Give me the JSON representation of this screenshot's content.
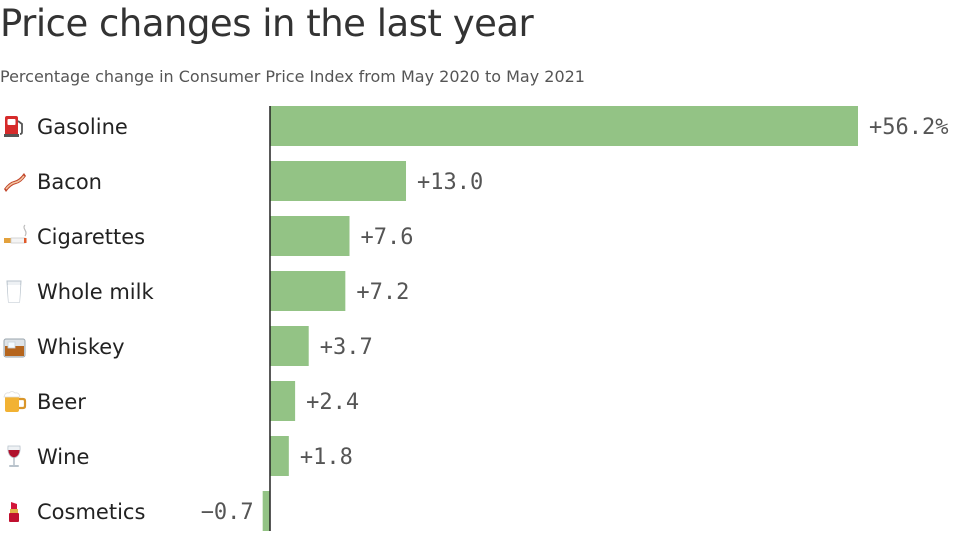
{
  "header": {
    "title": "Price changes in the last year",
    "subtitle": "Percentage change in Consumer Price Index from May 2020 to May 2021"
  },
  "chart_data": {
    "type": "bar",
    "orientation": "horizontal",
    "title": "Price changes in the last year",
    "subtitle": "Percentage change in Consumer Price Index from May 2020 to May 2021",
    "xlabel": "",
    "ylabel": "",
    "categories": [
      "Gasoline",
      "Bacon",
      "Cigarettes",
      "Whole milk",
      "Whiskey",
      "Beer",
      "Wine",
      "Cosmetics"
    ],
    "category_icons": [
      "fuel-pump-icon",
      "bacon-icon",
      "cigarette-icon",
      "milk-glass-icon",
      "whiskey-glass-icon",
      "beer-mug-icon",
      "wine-glass-icon",
      "lipstick-icon"
    ],
    "values": [
      56.2,
      13.0,
      7.6,
      7.2,
      3.7,
      2.4,
      1.8,
      -0.7
    ],
    "value_labels": [
      "+56.2%",
      "+13.0",
      "+7.6",
      "+7.2",
      "+3.7",
      "+2.4",
      "+1.8",
      "−0.7"
    ],
    "xlim": [
      -0.7,
      56.2
    ],
    "grid": false,
    "legend": "none",
    "colors": {
      "bar": "#93c385",
      "axis": "#222222"
    }
  }
}
